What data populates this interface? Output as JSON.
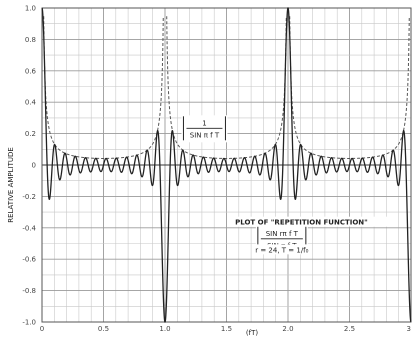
{
  "chart_data": {
    "type": "line",
    "title": "",
    "xlabel": "(fT)",
    "ylabel": "RELATIVE AMPLITUDE",
    "xlim": [
      0,
      3
    ],
    "ylim": [
      -1.0,
      1.0
    ],
    "grid": true,
    "x_ticks": [
      {
        "value": 0,
        "label": "0"
      },
      {
        "value": 0.5,
        "label": "0.5"
      },
      {
        "value": 1.0,
        "label": "1.0"
      },
      {
        "value": 1.5,
        "label": "1.5"
      },
      {
        "value": 2.0,
        "label": "2.0"
      },
      {
        "value": 2.5,
        "label": "2.5"
      },
      {
        "value": 3.0,
        "label": "3"
      }
    ],
    "y_ticks": [
      {
        "value": 1.0,
        "label": "1.0"
      },
      {
        "value": 0.8,
        "label": "0.8"
      },
      {
        "value": 0.6,
        "label": "0.6"
      },
      {
        "value": 0.4,
        "label": "0.4"
      },
      {
        "value": 0.2,
        "label": "0.2"
      },
      {
        "value": 0,
        "label": "0"
      },
      {
        "value": -0.2,
        "label": "-0.2"
      },
      {
        "value": -0.4,
        "label": "-0.4"
      },
      {
        "value": -0.6,
        "label": "-0.6"
      },
      {
        "value": -0.8,
        "label": "-0.8"
      },
      {
        "value": -1.0,
        "label": "-1.0"
      }
    ],
    "parameters": {
      "r": 24,
      "cycles_per_unit": 24
    },
    "series": [
      {
        "name": "",
        "function": "sin(r*pi*x)/(r*sin(pi*x))",
        "style": "solid",
        "color": "#222222"
      },
      {
        "name": "",
        "function": "1/(r*|sin(pi*x)|)",
        "style": "dashed",
        "color": "#444444"
      }
    ],
    "annotations": [
      {
        "id": "envelope",
        "lines": [
          "1",
          "SIN π f T"
        ],
        "x": 1.15,
        "y": 0.24
      },
      {
        "id": "plot-title",
        "lines": [
          "PLOT OF \"REPETITION FUNCTION\""
        ],
        "x": 1.57,
        "y": -0.38
      },
      {
        "id": "formula",
        "lines": [
          "SIN rπ f T",
          "SIN π f T"
        ],
        "x": 1.95,
        "y": -0.47
      },
      {
        "id": "params",
        "lines": [
          "r = 24, T = 1/f₀"
        ],
        "x": 1.95,
        "y": -0.55
      }
    ]
  }
}
